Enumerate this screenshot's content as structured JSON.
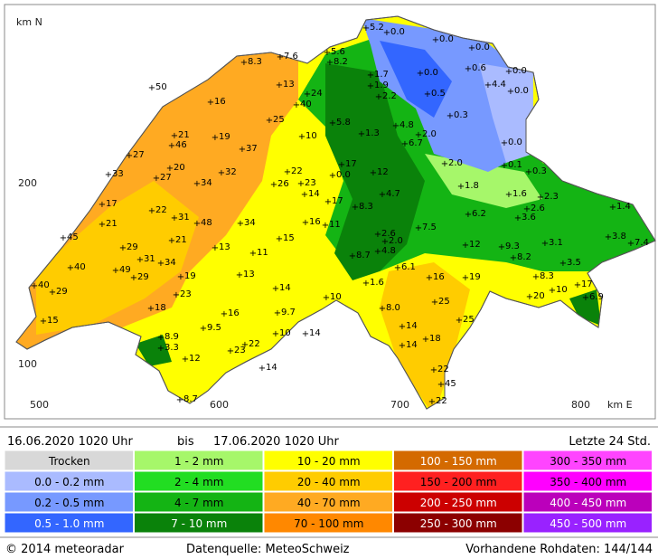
{
  "map": {
    "axis_labels": {
      "north": "km N",
      "east": "km E"
    },
    "y_ticks": [
      "200",
      "100"
    ],
    "x_ticks": [
      "500",
      "600",
      "700",
      "800"
    ],
    "stations": [
      "5.2",
      "0.0",
      "0.0",
      "0.0",
      "7.6",
      "5.6",
      "8.3",
      "8.2",
      "0.6",
      "0.0",
      "1.7",
      "0.0",
      "4.4",
      "50",
      "13",
      "1.9",
      "24",
      "0.0",
      "0.5",
      "2.2",
      "16",
      "40",
      "0.3",
      "25",
      "5.8",
      "4.8",
      "21",
      "19",
      "10",
      "1.3",
      "2.0",
      "46",
      "6.7",
      "0.0",
      "37",
      "27",
      "20",
      "17",
      "0.1",
      "32",
      "22",
      "0.0",
      "12",
      "2.0",
      "0.3",
      "33",
      "27",
      "34",
      "26",
      "23",
      "1.8",
      "14",
      "4.7",
      "1.6",
      "2.3",
      "17",
      "17",
      "8.3",
      "2.6",
      "1.4",
      "22",
      "31",
      "6.2",
      "3.6",
      "21",
      "48",
      "34",
      "16",
      "11",
      "7.5",
      "2.6",
      "45",
      "15",
      "2.0",
      "3.8",
      "7.4",
      "21",
      "13",
      "12",
      "9.3",
      "3.1",
      "29",
      "11",
      "4.8",
      "8.2",
      "31",
      "8.7",
      "34",
      "40",
      "49",
      "6.1",
      "3.5",
      "29",
      "19",
      "13",
      "16",
      "19",
      "8.3",
      "17",
      "1.6",
      "40",
      "29",
      "23",
      "14",
      "10",
      "6.9",
      "20",
      "10",
      "25",
      "18",
      "8.0",
      "16",
      "9.7",
      "15",
      "25",
      "14",
      "9.5",
      "10",
      "14",
      "8.9",
      "18",
      "22",
      "14",
      "3.3",
      "23",
      "12",
      "14",
      "22",
      "45",
      "8.7",
      "22"
    ]
  },
  "period": {
    "from": "16.06.2020  1020 Uhr",
    "connector": "bis",
    "to": "17.06.2020  1020 Uhr",
    "window": "Letzte 24 Std."
  },
  "legend": [
    [
      {
        "label": "Trocken",
        "color": "#d8d8d8"
      },
      {
        "label": "0.0 - 0.2 mm",
        "color": "#aabbff"
      },
      {
        "label": "0.2 - 0.5 mm",
        "color": "#7799ff"
      },
      {
        "label": "0.5 - 1.0 mm",
        "color": "#3366ff"
      }
    ],
    [
      {
        "label": "1 - 2 mm",
        "color": "#a6f76a"
      },
      {
        "label": "2 - 4 mm",
        "color": "#22dd22"
      },
      {
        "label": "4 - 7 mm",
        "color": "#14b414"
      },
      {
        "label": "7 - 10 mm",
        "color": "#0a820a"
      }
    ],
    [
      {
        "label": "10 - 20 mm",
        "color": "#ffff00"
      },
      {
        "label": "20 - 40 mm",
        "color": "#ffcc00"
      },
      {
        "label": "40 - 70 mm",
        "color": "#ffaa22"
      },
      {
        "label": "70 - 100 mm",
        "color": "#ff8800"
      }
    ],
    [
      {
        "label": "100 - 150 mm",
        "color": "#d46a00"
      },
      {
        "label": "150 - 200 mm",
        "color": "#ff2020"
      },
      {
        "label": "200 - 250 mm",
        "color": "#cc0000"
      },
      {
        "label": "250 - 300 mm",
        "color": "#8c0000"
      }
    ],
    [
      {
        "label": "300 - 350 mm",
        "color": "#ff44ff"
      },
      {
        "label": "350 - 400 mm",
        "color": "#ff00ff"
      },
      {
        "label": "400 - 450 mm",
        "color": "#bb00bb"
      },
      {
        "label": "450 - 500 mm",
        "color": "#9922ff"
      }
    ]
  ],
  "footer": {
    "copyright": "© 2014  meteoradar",
    "source": "Datenquelle: MeteoSchweiz",
    "raw": "Vorhandene Rohdaten: 144/144"
  }
}
